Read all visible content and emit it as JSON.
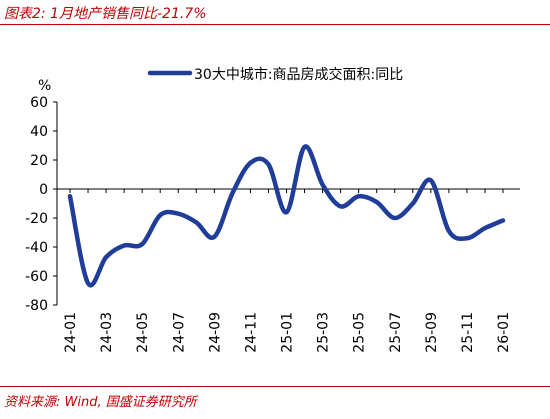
{
  "header": {
    "title": "图表2:  1月地产销售同比-21.7%"
  },
  "footer": {
    "source": "资料来源:  Wind,  国盛证券研究所"
  },
  "colors": {
    "accent": "#c00000",
    "series": "#1f3d99"
  },
  "chart_data": {
    "type": "line",
    "title": "",
    "xlabel": "",
    "ylabel": "%",
    "ylim": [
      -80,
      60
    ],
    "yticks": [
      -80,
      -60,
      -40,
      -20,
      0,
      20,
      40,
      60
    ],
    "xtick_labels": [
      "24-01",
      "24-03",
      "24-05",
      "24-07",
      "24-09",
      "24-11",
      "25-01",
      "25-03",
      "25-05",
      "25-07",
      "25-09",
      "25-11",
      "26-01"
    ],
    "x": [
      "24-01",
      "24-02",
      "24-03",
      "24-04",
      "24-05",
      "24-06",
      "24-07",
      "24-08",
      "24-09",
      "24-10",
      "24-11",
      "24-12",
      "25-01",
      "25-02",
      "25-03",
      "25-04",
      "25-05",
      "25-06",
      "25-07",
      "25-08",
      "25-09",
      "25-10",
      "25-11",
      "25-12",
      "26-01"
    ],
    "legend_position": "top",
    "grid": false,
    "series": [
      {
        "name": "30大中城市:商品房成交面积:同比",
        "values": [
          -5,
          -65,
          -47,
          -39,
          -38,
          -18,
          -17,
          -23,
          -33,
          -3,
          18,
          17,
          -16,
          29,
          3,
          -12,
          -5,
          -9,
          -20,
          -10,
          6,
          -29,
          -34,
          -27,
          -21.7
        ]
      }
    ]
  }
}
